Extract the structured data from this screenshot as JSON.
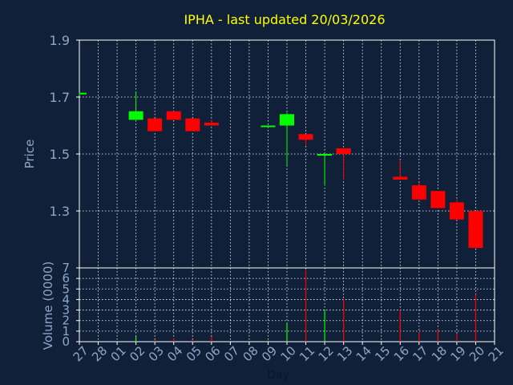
{
  "title": "IPHA - last updated 20/03/2026",
  "colors": {
    "background": "#102039",
    "axis": "#ffffff",
    "grid": "#ffffff",
    "label": "#8ea6c8",
    "title": "#ffff00",
    "up": "#00ff00",
    "down": "#ff0000"
  },
  "chart_data": [
    {
      "type": "candlestick",
      "ylabel": "Price",
      "ylim": [
        1.1,
        1.9
      ],
      "yticks": [
        1.3,
        1.5,
        1.7,
        1.9
      ],
      "grid": true,
      "x": [
        "27",
        "28",
        "01",
        "02",
        "03",
        "04",
        "05",
        "06",
        "07",
        "08",
        "09",
        "10",
        "11",
        "12",
        "13",
        "14",
        "15",
        "16",
        "17",
        "18",
        "19",
        "20",
        "21"
      ],
      "candles": [
        {
          "day": "27",
          "open": 1.71,
          "high": 1.715,
          "low": 1.705,
          "close": 1.715
        },
        {
          "day": "02",
          "open": 1.62,
          "high": 1.72,
          "low": 1.62,
          "close": 1.65
        },
        {
          "day": "03",
          "open": 1.625,
          "high": 1.625,
          "low": 1.58,
          "close": 1.58
        },
        {
          "day": "04",
          "open": 1.65,
          "high": 1.65,
          "low": 1.62,
          "close": 1.62
        },
        {
          "day": "05",
          "open": 1.625,
          "high": 1.625,
          "low": 1.58,
          "close": 1.58
        },
        {
          "day": "06",
          "open": 1.61,
          "high": 1.62,
          "low": 1.6,
          "close": 1.6
        },
        {
          "day": "09",
          "open": 1.595,
          "high": 1.6,
          "low": 1.595,
          "close": 1.6
        },
        {
          "day": "10",
          "open": 1.6,
          "high": 1.645,
          "low": 1.46,
          "close": 1.64
        },
        {
          "day": "11",
          "open": 1.57,
          "high": 1.57,
          "low": 1.53,
          "close": 1.55
        },
        {
          "day": "12",
          "open": 1.495,
          "high": 1.505,
          "low": 1.39,
          "close": 1.5
        },
        {
          "day": "13",
          "open": 1.52,
          "high": 1.52,
          "low": 1.41,
          "close": 1.5
        },
        {
          "day": "16",
          "open": 1.42,
          "high": 1.48,
          "low": 1.41,
          "close": 1.41
        },
        {
          "day": "17",
          "open": 1.39,
          "high": 1.4,
          "low": 1.34,
          "close": 1.34
        },
        {
          "day": "18",
          "open": 1.37,
          "high": 1.37,
          "low": 1.31,
          "close": 1.31
        },
        {
          "day": "19",
          "open": 1.33,
          "high": 1.34,
          "low": 1.27,
          "close": 1.27
        },
        {
          "day": "20",
          "open": 1.3,
          "high": 1.3,
          "low": 1.17,
          "close": 1.17
        }
      ]
    },
    {
      "type": "bar",
      "ylabel": "Volume (0000)",
      "xlabel": "Day",
      "ylim": [
        0,
        7
      ],
      "yticks": [
        0,
        1,
        2,
        3,
        4,
        5,
        6,
        7
      ],
      "grid": true,
      "volumes": [
        {
          "day": "02",
          "value": 0.5,
          "dir": "up"
        },
        {
          "day": "03",
          "value": 0.2,
          "dir": "down"
        },
        {
          "day": "04",
          "value": 0.3,
          "dir": "down"
        },
        {
          "day": "05",
          "value": 0.2,
          "dir": "down"
        },
        {
          "day": "06",
          "value": 0.5,
          "dir": "down"
        },
        {
          "day": "09",
          "value": 0.1,
          "dir": "up"
        },
        {
          "day": "10",
          "value": 1.8,
          "dir": "up"
        },
        {
          "day": "11",
          "value": 6.8,
          "dir": "down"
        },
        {
          "day": "12",
          "value": 3.0,
          "dir": "up"
        },
        {
          "day": "13",
          "value": 4.0,
          "dir": "down"
        },
        {
          "day": "16",
          "value": 3.0,
          "dir": "down"
        },
        {
          "day": "17",
          "value": 0.9,
          "dir": "down"
        },
        {
          "day": "18",
          "value": 1.2,
          "dir": "down"
        },
        {
          "day": "19",
          "value": 0.8,
          "dir": "down"
        },
        {
          "day": "20",
          "value": 4.5,
          "dir": "down"
        }
      ]
    }
  ]
}
